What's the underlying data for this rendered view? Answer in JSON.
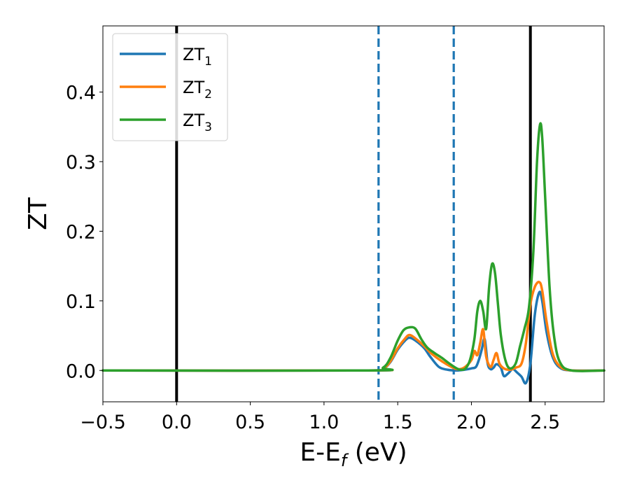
{
  "chart_data": {
    "type": "line",
    "xlabel": "E-E",
    "xlabel_sub": "f",
    "xlabel_unit": " (eV)",
    "ylabel": "ZT",
    "xlim": [
      -0.5,
      2.9
    ],
    "ylim": [
      -0.045,
      0.495
    ],
    "xticks": [
      -0.5,
      0.0,
      0.5,
      1.0,
      1.5,
      2.0,
      2.5
    ],
    "xtick_labels": [
      "−0.5",
      "0.0",
      "0.5",
      "1.0",
      "1.5",
      "2.0",
      "2.5"
    ],
    "yticks": [
      0.0,
      0.1,
      0.2,
      0.3,
      0.4
    ],
    "ytick_labels": [
      "0.0",
      "0.1",
      "0.2",
      "0.3",
      "0.4"
    ],
    "grid": false,
    "legend_position": "top-left",
    "vlines": [
      {
        "x": 0.0,
        "style": "solid",
        "color": "#000000"
      },
      {
        "x": 2.4,
        "style": "solid",
        "color": "#000000"
      },
      {
        "x": 1.37,
        "style": "dashed",
        "color": "#1f77b4"
      },
      {
        "x": 1.88,
        "style": "dashed",
        "color": "#1f77b4"
      }
    ],
    "series": [
      {
        "name": "ZT",
        "name_sub": "1",
        "color": "#1f77b4",
        "x": [
          -0.5,
          1.3,
          1.4,
          1.45,
          1.5,
          1.55,
          1.58,
          1.62,
          1.68,
          1.72,
          1.78,
          1.84,
          1.9,
          1.95,
          2.0,
          2.03,
          2.05,
          2.07,
          2.09,
          2.11,
          2.13,
          2.15,
          2.17,
          2.2,
          2.22,
          2.25,
          2.28,
          2.31,
          2.34,
          2.37,
          2.4,
          2.43,
          2.46,
          2.48,
          2.51,
          2.55,
          2.6,
          2.68,
          2.9
        ],
        "y": [
          0.0,
          0.0,
          0.003,
          0.012,
          0.03,
          0.043,
          0.047,
          0.043,
          0.032,
          0.02,
          0.005,
          0.001,
          0.0,
          0.001,
          0.003,
          0.005,
          0.015,
          0.03,
          0.045,
          0.01,
          0.002,
          0.004,
          0.009,
          0.004,
          -0.008,
          -0.004,
          0.002,
          -0.003,
          -0.009,
          -0.018,
          0.01,
          0.08,
          0.112,
          0.1,
          0.055,
          0.02,
          0.004,
          0.0,
          0.0
        ]
      },
      {
        "name": "ZT",
        "name_sub": "2",
        "color": "#ff7f0e",
        "x": [
          -0.5,
          1.3,
          1.4,
          1.45,
          1.5,
          1.55,
          1.58,
          1.62,
          1.68,
          1.72,
          1.78,
          1.84,
          1.9,
          1.95,
          2.0,
          2.02,
          2.04,
          2.06,
          2.08,
          2.1,
          2.13,
          2.15,
          2.17,
          2.19,
          2.22,
          2.26,
          2.3,
          2.34,
          2.37,
          2.4,
          2.43,
          2.46,
          2.48,
          2.51,
          2.55,
          2.6,
          2.68,
          2.9
        ],
        "y": [
          0.0,
          0.0,
          0.003,
          0.013,
          0.032,
          0.046,
          0.051,
          0.046,
          0.035,
          0.026,
          0.016,
          0.008,
          0.002,
          0.004,
          0.015,
          0.028,
          0.022,
          0.04,
          0.059,
          0.02,
          0.005,
          0.015,
          0.025,
          0.01,
          0.003,
          0.001,
          0.004,
          0.01,
          0.04,
          0.095,
          0.12,
          0.127,
          0.115,
          0.07,
          0.025,
          0.006,
          0.0,
          0.0
        ]
      },
      {
        "name": "ZT",
        "name_sub": "3",
        "color": "#2ca02c",
        "x": [
          -0.5,
          1.3,
          1.4,
          1.45,
          1.5,
          1.54,
          1.58,
          1.62,
          1.66,
          1.7,
          1.75,
          1.8,
          1.85,
          1.9,
          1.93,
          1.96,
          1.99,
          2.02,
          2.04,
          2.06,
          2.08,
          2.1,
          2.12,
          2.14,
          2.16,
          2.18,
          2.2,
          2.23,
          2.26,
          2.3,
          2.33,
          2.36,
          2.39,
          2.42,
          2.445,
          2.465,
          2.48,
          2.5,
          2.53,
          2.56,
          2.6,
          2.68,
          2.9
        ],
        "y": [
          0.0,
          0.0,
          0.004,
          0.018,
          0.043,
          0.058,
          0.062,
          0.06,
          0.045,
          0.033,
          0.025,
          0.018,
          0.01,
          0.003,
          0.001,
          0.003,
          0.015,
          0.045,
          0.085,
          0.1,
          0.085,
          0.06,
          0.12,
          0.153,
          0.14,
          0.095,
          0.05,
          0.015,
          0.003,
          0.01,
          0.035,
          0.06,
          0.09,
          0.17,
          0.3,
          0.353,
          0.335,
          0.25,
          0.12,
          0.05,
          0.012,
          0.0,
          0.0
        ]
      }
    ]
  }
}
